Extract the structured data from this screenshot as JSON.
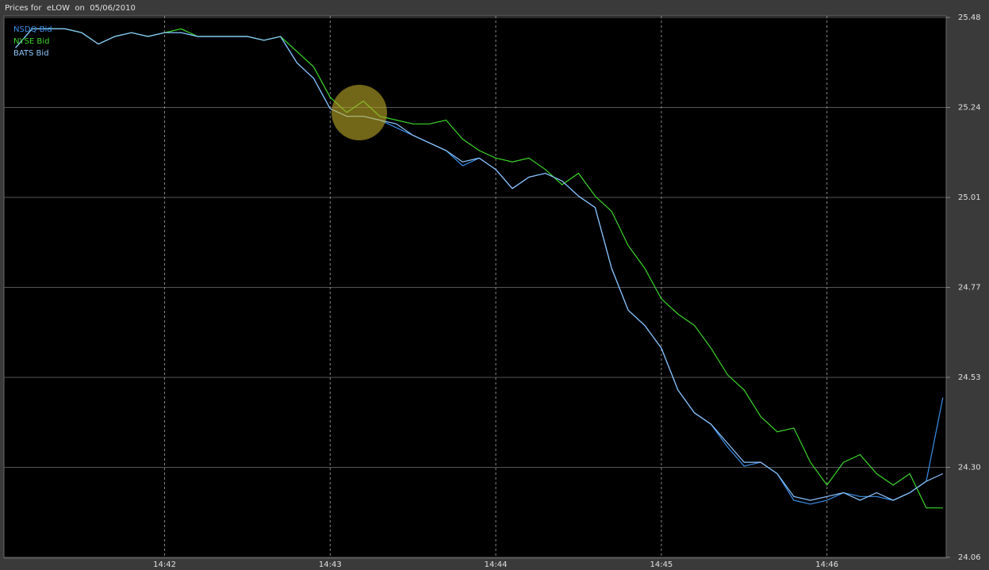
{
  "chart_data": {
    "type": "line",
    "title": "Prices for  eLOW  on  05/06/2010",
    "x": [
      41.1,
      41.2,
      41.3,
      41.4,
      41.5,
      41.6,
      41.7,
      41.8,
      41.9,
      42.0,
      42.1,
      42.2,
      42.3,
      42.4,
      42.5,
      42.6,
      42.7,
      42.8,
      42.9,
      43.0,
      43.1,
      43.2,
      43.3,
      43.4,
      43.5,
      43.6,
      43.7,
      43.8,
      43.9,
      44.0,
      44.1,
      44.2,
      44.3,
      44.4,
      44.5,
      44.6,
      44.7,
      44.8,
      44.9,
      45.0,
      45.1,
      45.2,
      45.3,
      45.4,
      45.5,
      45.6,
      45.7,
      45.8,
      45.9,
      46.0,
      46.1,
      46.2,
      46.3,
      46.4,
      46.5,
      46.6,
      46.7
    ],
    "series": [
      {
        "name": "NSDQ Bid",
        "color": "#3a8fe8",
        "values": [
          25.4,
          25.45,
          25.45,
          25.45,
          25.44,
          25.41,
          25.43,
          25.44,
          25.43,
          25.44,
          25.44,
          25.43,
          25.43,
          25.43,
          25.43,
          25.42,
          25.43,
          25.36,
          25.32,
          25.24,
          25.22,
          25.22,
          25.21,
          25.19,
          25.17,
          25.15,
          25.13,
          25.09,
          25.11,
          25.08,
          25.03,
          25.06,
          25.07,
          25.05,
          25.01,
          24.98,
          24.82,
          24.71,
          24.67,
          24.61,
          24.5,
          24.44,
          24.41,
          24.35,
          24.3,
          24.31,
          24.28,
          24.21,
          24.2,
          24.21,
          24.23,
          24.22,
          24.22,
          24.21,
          24.23,
          24.26,
          24.48
        ]
      },
      {
        "name": "NYSE Bid",
        "color": "#3cd62a",
        "values": [
          25.4,
          25.45,
          25.45,
          25.45,
          25.44,
          25.41,
          25.43,
          25.44,
          25.43,
          25.44,
          25.45,
          25.43,
          25.43,
          25.43,
          25.43,
          25.42,
          25.43,
          25.39,
          25.35,
          25.27,
          25.23,
          25.26,
          25.22,
          25.21,
          25.2,
          25.2,
          25.21,
          25.16,
          25.13,
          25.11,
          25.1,
          25.11,
          25.08,
          25.04,
          25.07,
          25.01,
          24.97,
          24.88,
          24.82,
          24.74,
          24.7,
          24.67,
          24.61,
          24.54,
          24.5,
          24.43,
          24.39,
          24.4,
          24.31,
          24.25,
          24.31,
          24.33,
          24.28,
          24.25,
          24.28,
          24.19,
          24.19
        ]
      },
      {
        "name": "BATS Bid",
        "color": "#8ec8ff",
        "values": [
          25.4,
          25.45,
          25.45,
          25.45,
          25.44,
          25.41,
          25.43,
          25.44,
          25.43,
          25.44,
          25.44,
          25.43,
          25.43,
          25.43,
          25.43,
          25.42,
          25.43,
          25.36,
          25.32,
          25.24,
          25.22,
          25.22,
          25.21,
          25.2,
          25.17,
          25.15,
          25.13,
          25.1,
          25.11,
          25.08,
          25.03,
          25.06,
          25.07,
          25.05,
          25.01,
          24.98,
          24.82,
          24.71,
          24.67,
          24.61,
          24.5,
          24.44,
          24.41,
          24.36,
          24.31,
          24.31,
          24.28,
          24.22,
          24.21,
          24.22,
          24.23,
          24.21,
          24.23,
          24.21,
          24.23,
          24.26,
          24.28
        ]
      }
    ],
    "xlim": [
      41.03,
      46.72
    ],
    "xticks": [
      {
        "value": 42,
        "label": "14:42"
      },
      {
        "value": 43,
        "label": "14:43"
      },
      {
        "value": 44,
        "label": "14:44"
      },
      {
        "value": 45,
        "label": "14:45"
      },
      {
        "value": 46,
        "label": "14:46"
      }
    ],
    "ylim": [
      24.06,
      25.48
    ],
    "yticks": [
      {
        "value": 24.06,
        "label": "24.06"
      },
      {
        "value": 24.2967,
        "label": "24.30"
      },
      {
        "value": 24.5333,
        "label": "24.53"
      },
      {
        "value": 24.77,
        "label": "24.77"
      },
      {
        "value": 25.0067,
        "label": "25.01"
      },
      {
        "value": 25.2433,
        "label": "25.24"
      },
      {
        "value": 25.48,
        "label": "25.48"
      }
    ],
    "grid": true,
    "legend": "upper left"
  }
}
